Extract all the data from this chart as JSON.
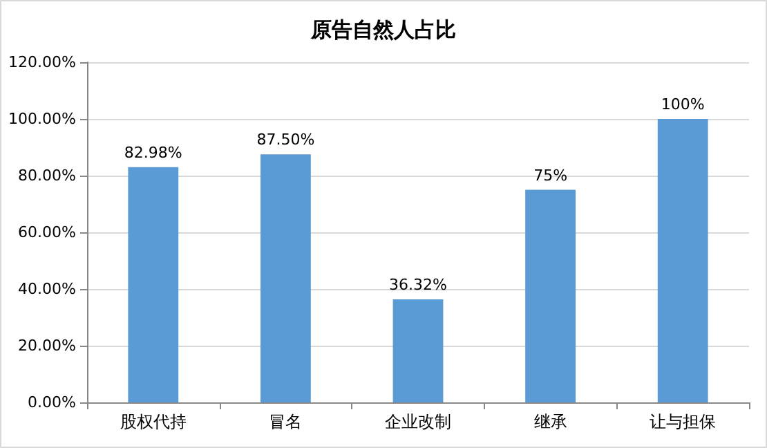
{
  "chart_data": {
    "type": "bar",
    "title": "原告自然人占比",
    "categories": [
      "股权代持",
      "冒名",
      "企业改制",
      "继承",
      "让与担保"
    ],
    "series": [
      {
        "color": "#5b9bd5",
        "values": [
          82.98,
          87.5,
          36.32,
          75,
          100
        ],
        "value_labels": [
          "82.98%",
          "87.50%",
          "36.32%",
          "75%",
          "100%"
        ]
      }
    ],
    "ylim": [
      0,
      120
    ],
    "yticks": [
      {
        "value": 0,
        "label": "0.00%"
      },
      {
        "value": 20,
        "label": "20.00%"
      },
      {
        "value": 40,
        "label": "40.00%"
      },
      {
        "value": 60,
        "label": "60.00%"
      },
      {
        "value": 80,
        "label": "80.00%"
      },
      {
        "value": 100,
        "label": "100.00%"
      },
      {
        "value": 120,
        "label": "120.00%"
      }
    ],
    "grid": "y"
  }
}
